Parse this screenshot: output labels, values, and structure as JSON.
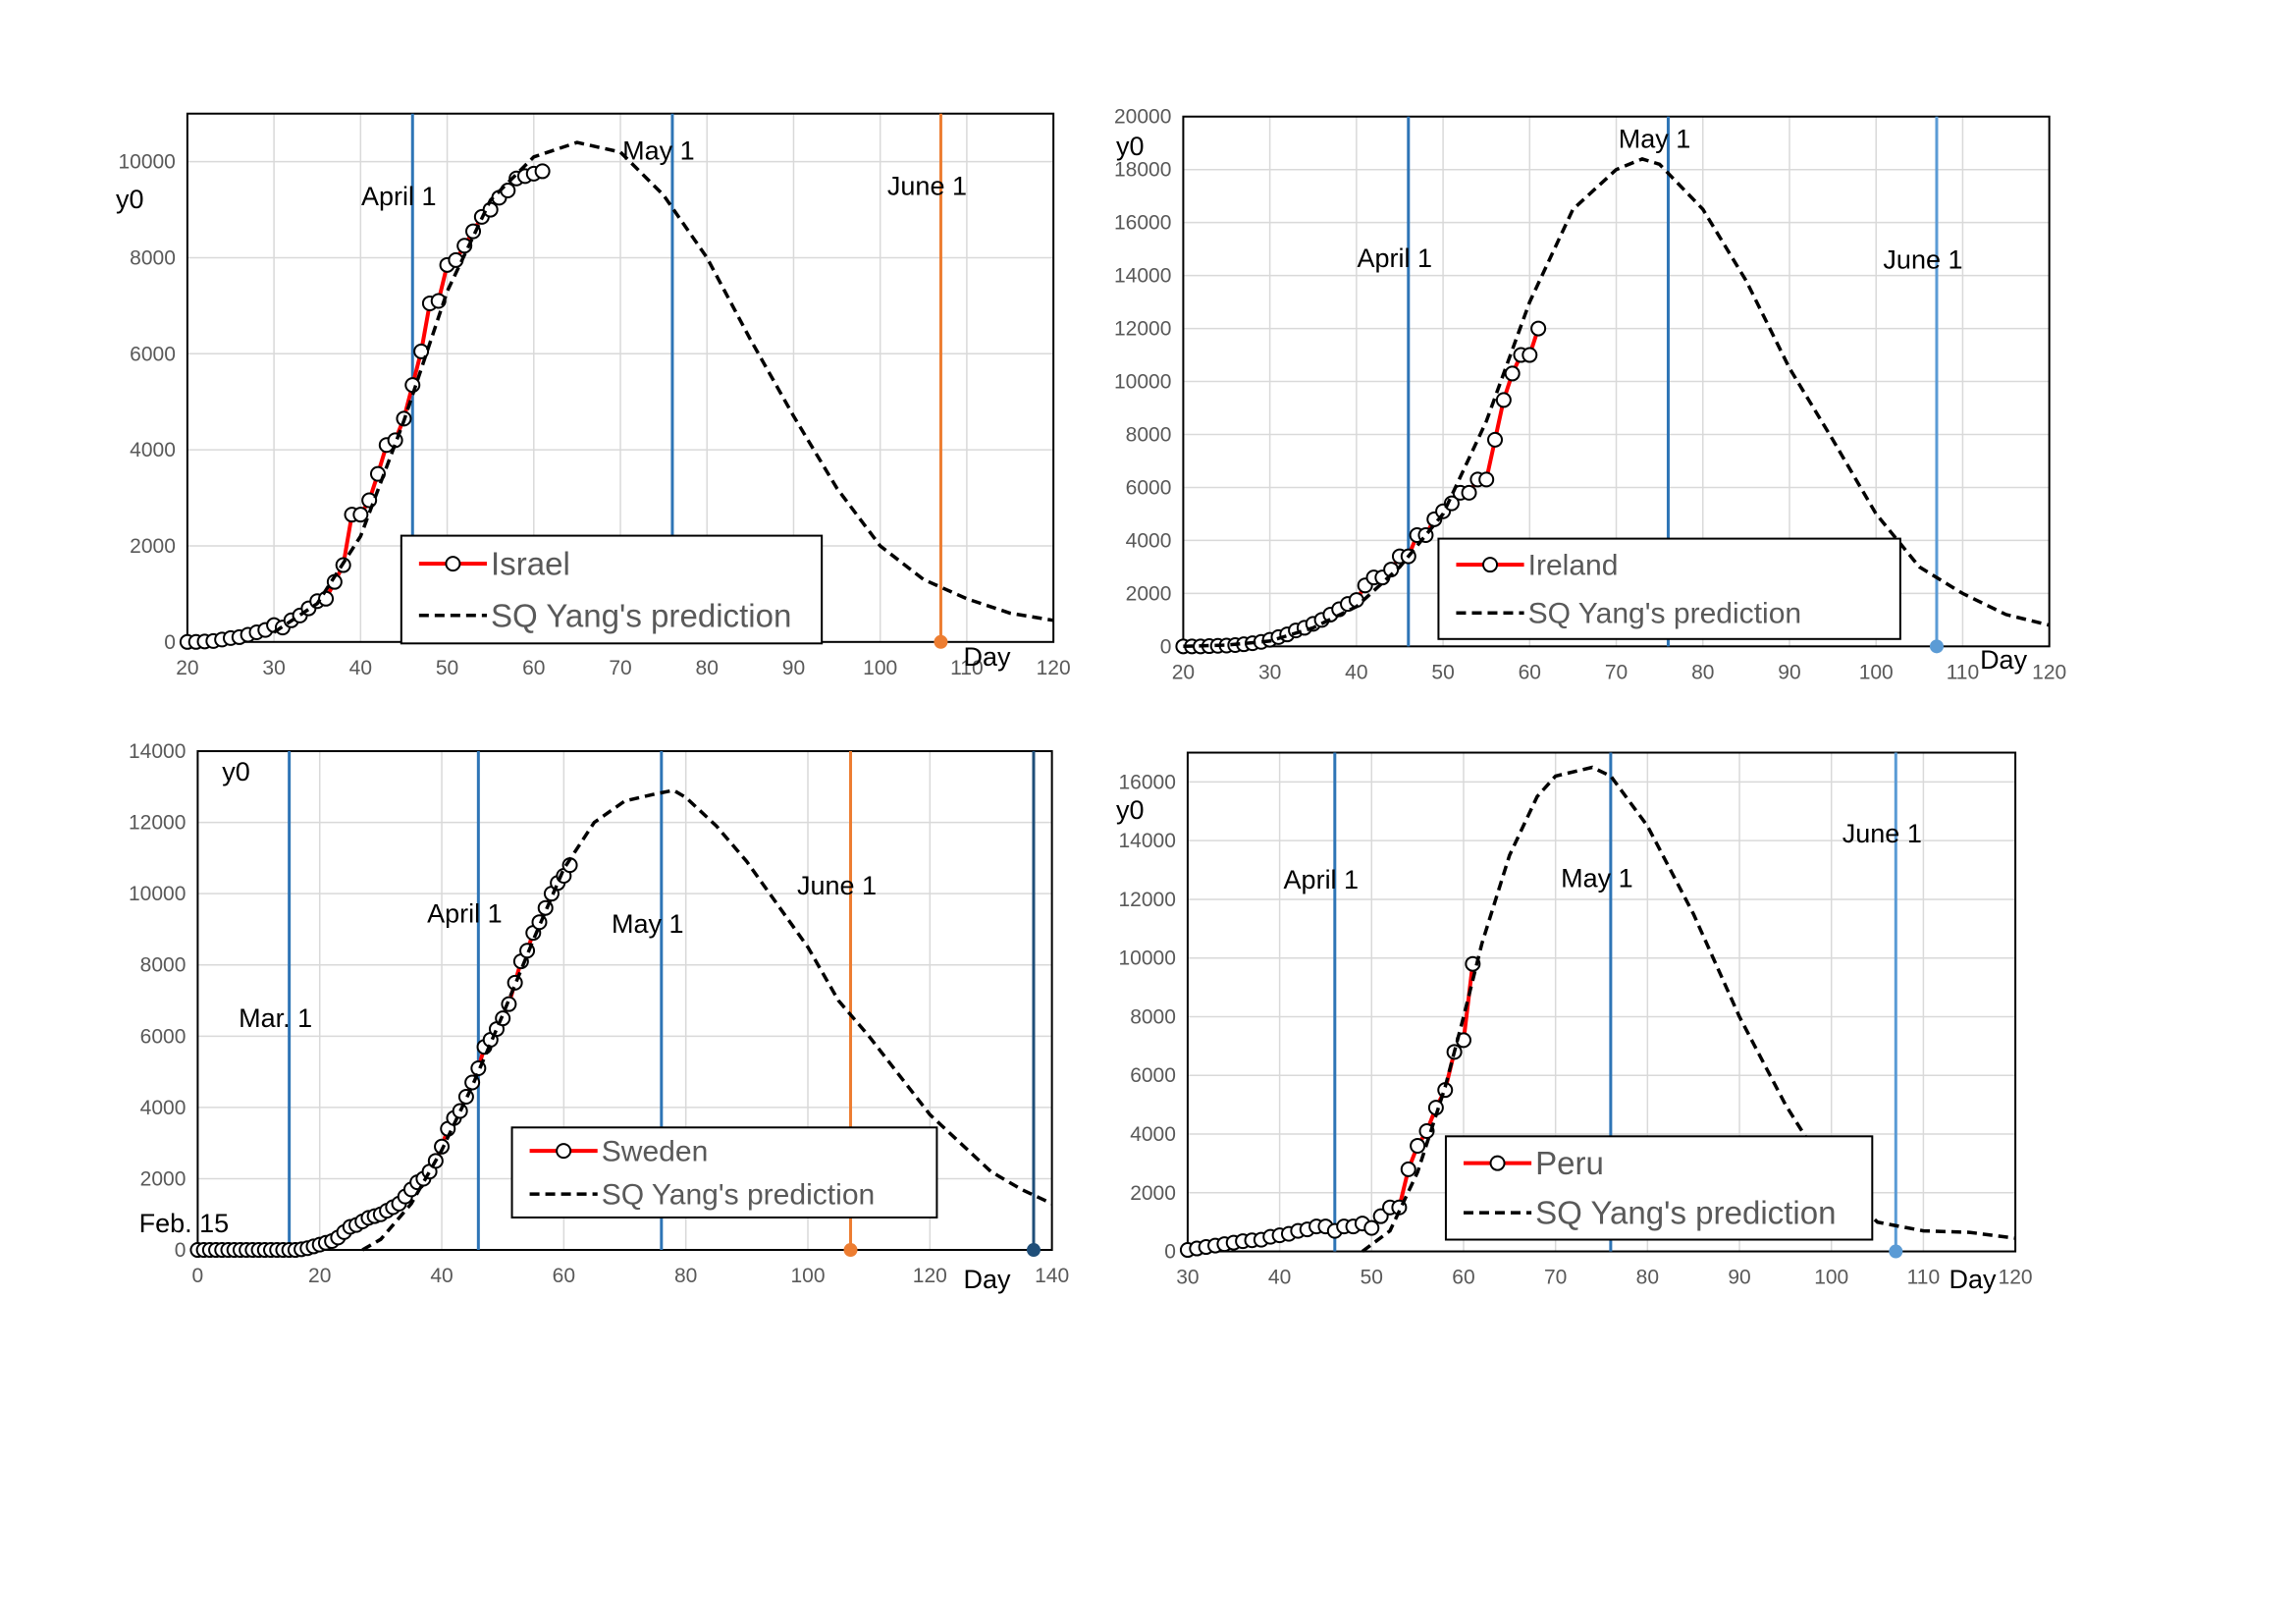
{
  "chart_data": [
    {
      "type": "line",
      "x_label": "Day",
      "y_label": "y0",
      "xlim": [
        20,
        120
      ],
      "xticks": [
        20,
        30,
        40,
        50,
        60,
        70,
        80,
        90,
        100,
        110,
        120
      ],
      "ylim": [
        0,
        11000
      ],
      "yticks": [
        0,
        2000,
        4000,
        6000,
        8000,
        10000
      ],
      "grid": true,
      "series": [
        {
          "name": "Israel",
          "color": "#ff0000",
          "markers": true,
          "x": [
            20,
            21,
            22,
            23,
            24,
            25,
            26,
            27,
            28,
            29,
            30,
            31,
            32,
            33,
            34,
            35,
            36,
            37,
            38,
            39,
            40,
            41,
            42,
            43,
            44,
            45,
            46,
            47,
            48,
            49,
            50,
            51,
            52,
            53,
            54,
            55,
            56,
            57,
            58,
            59,
            60,
            61
          ],
          "values": [
            0,
            0,
            10,
            20,
            50,
            80,
            100,
            150,
            200,
            250,
            350,
            300,
            450,
            550,
            700,
            850,
            900,
            1250,
            1600,
            2650,
            2650,
            2950,
            3500,
            4100,
            4200,
            4650,
            5350,
            6050,
            7050,
            7100,
            7850,
            7950,
            8250,
            8550,
            8850,
            9000,
            9250,
            9400,
            9650,
            9700,
            9750,
            9800
          ]
        },
        {
          "name": "SQ Yang's prediction",
          "color": "#000000",
          "dashed": true,
          "x": [
            30,
            35,
            40,
            45,
            50,
            55,
            60,
            65,
            70,
            75,
            80,
            85,
            90,
            95,
            100,
            105,
            110,
            115,
            120
          ],
          "values": [
            200,
            800,
            2200,
            4600,
            7300,
            9200,
            10100,
            10400,
            10200,
            9300,
            8000,
            6300,
            4700,
            3200,
            2000,
            1300,
            900,
            600,
            450
          ]
        }
      ],
      "annotations": [
        {
          "label": "April 1",
          "x": 46,
          "color": "#2e75b6"
        },
        {
          "label": "May 1",
          "x": 76,
          "color": "#2e75b6"
        },
        {
          "label": "June 1",
          "x": 107,
          "color": "#ed7d31",
          "marker": true
        }
      ]
    },
    {
      "type": "line",
      "x_label": "Day",
      "y_label": "y0",
      "xlim": [
        20,
        120
      ],
      "xticks": [
        20,
        30,
        40,
        50,
        60,
        70,
        80,
        90,
        100,
        110,
        120
      ],
      "ylim": [
        0,
        20000
      ],
      "yticks": [
        0,
        2000,
        4000,
        6000,
        8000,
        10000,
        12000,
        14000,
        16000,
        18000,
        20000
      ],
      "grid": true,
      "series": [
        {
          "name": "Ireland",
          "color": "#ff0000",
          "markers": true,
          "x": [
            20,
            21,
            22,
            23,
            24,
            25,
            26,
            27,
            28,
            29,
            30,
            31,
            32,
            33,
            34,
            35,
            36,
            37,
            38,
            39,
            40,
            41,
            42,
            43,
            44,
            45,
            46,
            47,
            48,
            49,
            50,
            51,
            52,
            53,
            54,
            55,
            56,
            57,
            58,
            59,
            60,
            61
          ],
          "values": [
            0,
            0,
            0,
            10,
            20,
            30,
            50,
            80,
            120,
            170,
            250,
            350,
            450,
            600,
            700,
            850,
            1000,
            1200,
            1400,
            1600,
            1750,
            2300,
            2600,
            2600,
            2900,
            3400,
            3400,
            4200,
            4200,
            4800,
            5100,
            5400,
            5800,
            5800,
            6300,
            6300,
            7800,
            9300,
            10300,
            11000,
            11000,
            12000
          ]
        },
        {
          "name": "SQ Yang's prediction",
          "color": "#000000",
          "dashed": true,
          "x": [
            20,
            25,
            30,
            35,
            40,
            45,
            50,
            55,
            60,
            65,
            70,
            73,
            75,
            80,
            85,
            90,
            95,
            100,
            105,
            110,
            115,
            120
          ],
          "values": [
            0,
            50,
            200,
            700,
            1500,
            3000,
            5000,
            8500,
            13000,
            16500,
            18000,
            18400,
            18200,
            16500,
            13800,
            10500,
            7800,
            5000,
            3000,
            2000,
            1200,
            800
          ]
        }
      ],
      "annotations": [
        {
          "label": "April 1",
          "x": 46,
          "color": "#2e75b6"
        },
        {
          "label": "May 1",
          "x": 76,
          "color": "#2e75b6"
        },
        {
          "label": "June 1",
          "x": 107,
          "color": "#5b9bd5",
          "marker": true
        }
      ]
    },
    {
      "type": "line",
      "x_label": "Day",
      "y_label": "y0",
      "xlim": [
        0,
        140
      ],
      "xticks": [
        0,
        20,
        40,
        60,
        80,
        100,
        120,
        140
      ],
      "ylim": [
        0,
        14000
      ],
      "yticks": [
        0,
        2000,
        4000,
        6000,
        8000,
        10000,
        12000,
        14000
      ],
      "grid": true,
      "series": [
        {
          "name": "Sweden",
          "color": "#ff0000",
          "markers": true,
          "x": [
            0,
            1,
            2,
            3,
            4,
            5,
            6,
            7,
            8,
            9,
            10,
            11,
            12,
            13,
            14,
            15,
            16,
            17,
            18,
            19,
            20,
            21,
            22,
            23,
            24,
            25,
            26,
            27,
            28,
            29,
            30,
            31,
            32,
            33,
            34,
            35,
            36,
            37,
            38,
            39,
            40,
            41,
            42,
            43,
            44,
            45,
            46,
            47,
            48,
            49,
            50,
            51,
            52,
            53,
            54,
            55,
            56,
            57,
            58,
            59,
            60,
            61
          ],
          "values": [
            0,
            0,
            0,
            0,
            0,
            0,
            0,
            0,
            0,
            0,
            0,
            0,
            0,
            0,
            0,
            0,
            0,
            20,
            50,
            100,
            150,
            200,
            250,
            350,
            500,
            650,
            700,
            800,
            900,
            950,
            1000,
            1100,
            1200,
            1300,
            1500,
            1700,
            1900,
            2000,
            2200,
            2500,
            2900,
            3400,
            3700,
            3900,
            4300,
            4700,
            5100,
            5700,
            5900,
            6200,
            6500,
            6900,
            7500,
            8100,
            8400,
            8900,
            9200,
            9600,
            10000,
            10300,
            10500,
            10800
          ]
        },
        {
          "name": "SQ Yang's prediction",
          "color": "#000000",
          "dashed": true,
          "x": [
            27,
            30,
            35,
            40,
            45,
            50,
            55,
            60,
            65,
            70,
            75,
            78,
            80,
            85,
            90,
            95,
            100,
            105,
            110,
            115,
            120,
            125,
            130,
            135,
            140
          ],
          "values": [
            0,
            300,
            1300,
            2800,
            4600,
            6600,
            8700,
            10700,
            12000,
            12600,
            12800,
            12900,
            12700,
            11900,
            10900,
            9700,
            8500,
            7000,
            6000,
            4900,
            3800,
            3000,
            2200,
            1700,
            1300
          ]
        }
      ],
      "annotations": [
        {
          "label": "Feb. 15",
          "x": 0
        },
        {
          "label": "Mar. 1",
          "x": 15,
          "color": "#2e75b6"
        },
        {
          "label": "April 1",
          "x": 46,
          "color": "#2e75b6"
        },
        {
          "label": "May 1",
          "x": 76,
          "color": "#2e75b6"
        },
        {
          "label": "June 1",
          "x": 107,
          "color": "#ed7d31",
          "marker": true
        },
        {
          "x": 137,
          "color": "#1f4e79",
          "marker": true
        }
      ]
    },
    {
      "type": "line",
      "x_label": "Day",
      "y_label": "y0",
      "xlim": [
        30,
        120
      ],
      "xticks": [
        30,
        40,
        50,
        60,
        70,
        80,
        90,
        100,
        110,
        120
      ],
      "ylim": [
        0,
        17000
      ],
      "yticks": [
        0,
        2000,
        4000,
        6000,
        8000,
        10000,
        12000,
        14000,
        16000
      ],
      "grid": true,
      "series": [
        {
          "name": "Peru",
          "color": "#ff0000",
          "markers": true,
          "x": [
            30,
            31,
            32,
            33,
            34,
            35,
            36,
            37,
            38,
            39,
            40,
            41,
            42,
            43,
            44,
            45,
            46,
            47,
            48,
            49,
            50,
            51,
            52,
            53,
            54,
            55,
            56,
            57,
            58,
            59,
            60,
            61
          ],
          "values": [
            50,
            100,
            150,
            200,
            250,
            300,
            350,
            380,
            400,
            500,
            550,
            600,
            700,
            750,
            850,
            850,
            700,
            850,
            850,
            950,
            800,
            1200,
            1500,
            1500,
            2800,
            3600,
            4100,
            4900,
            5500,
            6800,
            7200,
            9800
          ]
        },
        {
          "name": "SQ Yang's prediction",
          "color": "#000000",
          "dashed": true,
          "x": [
            49,
            52,
            55,
            58,
            60,
            62,
            65,
            68,
            70,
            74,
            76,
            80,
            85,
            90,
            95,
            100,
            105,
            110,
            115,
            120
          ],
          "values": [
            0,
            700,
            2700,
            5600,
            8000,
            10500,
            13500,
            15500,
            16200,
            16500,
            16200,
            14500,
            11500,
            8000,
            5000,
            2500,
            1000,
            700,
            650,
            450
          ]
        }
      ],
      "annotations": [
        {
          "label": "April 1",
          "x": 46,
          "color": "#2e75b6"
        },
        {
          "label": "May 1",
          "x": 76,
          "color": "#2e75b6"
        },
        {
          "label": "June 1",
          "x": 107,
          "color": "#5b9bd5",
          "marker": true
        }
      ]
    }
  ]
}
